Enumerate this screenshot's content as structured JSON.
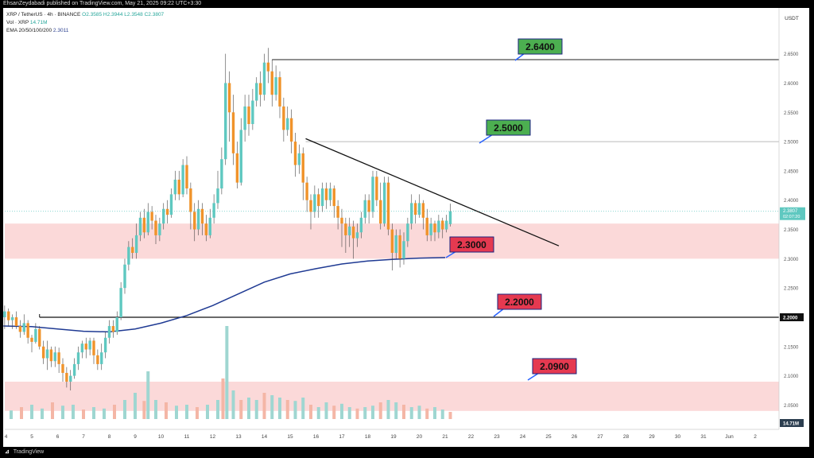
{
  "header": {
    "publisher": "EhsanZeydabadi published on TradingView.com, May 21, 2025 09:22 UTC+3:30"
  },
  "legend": {
    "symbol": "XRP / TetherUS · 4h · BINANCE",
    "o": "O2.3585",
    "h": "H2.3944",
    "l": "L2.3548",
    "c": "C2.3807",
    "vol_label": "Vol · XRP",
    "vol_value": "14.71M",
    "ema_label": "EMA 20/50/100/200",
    "ema_value": "2.3011"
  },
  "footer": {
    "brand": "TradingView"
  },
  "colors": {
    "up": "#5fc8c0",
    "down": "#f0932b",
    "ema": "#1f3a93",
    "zone": "#fbd9d9",
    "green_label": "#4caf50",
    "red_label": "#e53950",
    "vol_up": "#9fd6d1",
    "vol_down": "#f4b6a6"
  },
  "chart_data": {
    "type": "candlestick",
    "currency_label": "USDT",
    "ylim": [
      2.0,
      2.7
    ],
    "y_ticks": [
      "2.6500",
      "2.6000",
      "2.5500",
      "2.5000",
      "2.4500",
      "2.4000",
      "2.3500",
      "2.3000",
      "2.2500",
      "2.2000",
      "2.1500",
      "2.1000",
      "2.0500"
    ],
    "x_ticks": [
      "4",
      "5",
      "6",
      "7",
      "8",
      "9",
      "10",
      "11",
      "12",
      "13",
      "14",
      "15",
      "16",
      "17",
      "18",
      "19",
      "20",
      "21",
      "22",
      "23",
      "24",
      "25",
      "26",
      "27",
      "28",
      "29",
      "30",
      "31",
      "Jun",
      "2"
    ],
    "last_price_label": "2.3807",
    "countdown_label": "02:07:20",
    "level_2200_label": "2.2000",
    "volume_label": "14.71M",
    "zones": [
      {
        "from": 2.3,
        "to": 2.36
      },
      {
        "from": 2.04,
        "to": 2.09
      }
    ],
    "levels": [
      {
        "price": 2.64,
        "label": "2.6400",
        "kind": "resistance"
      },
      {
        "price": 2.5,
        "label": "2.5000",
        "kind": "resistance"
      },
      {
        "price": 2.3,
        "label": "2.3000",
        "kind": "support"
      },
      {
        "price": 2.2,
        "label": "2.2000",
        "kind": "support"
      },
      {
        "price": 2.09,
        "label": "2.0900",
        "kind": "support"
      }
    ],
    "trendline": {
      "from": {
        "day": 15.6,
        "price": 2.505
      },
      "to": {
        "day": 25.4,
        "price": 2.322
      }
    },
    "ema200": [
      [
        3.9,
        2.185
      ],
      [
        5,
        2.184
      ],
      [
        6,
        2.18
      ],
      [
        7,
        2.176
      ],
      [
        8,
        2.175
      ],
      [
        9,
        2.18
      ],
      [
        10,
        2.19
      ],
      [
        11,
        2.203
      ],
      [
        12,
        2.22
      ],
      [
        13,
        2.24
      ],
      [
        14,
        2.26
      ],
      [
        15,
        2.274
      ],
      [
        16,
        2.283
      ],
      [
        17,
        2.291
      ],
      [
        18,
        2.296
      ],
      [
        19,
        2.299
      ],
      [
        20,
        2.301
      ],
      [
        21,
        2.302
      ]
    ],
    "candles": [
      [
        3.95,
        2.2,
        2.21,
        2.22,
        2.18
      ],
      [
        4.1,
        2.21,
        2.195,
        2.215,
        2.185
      ],
      [
        4.25,
        2.195,
        2.2,
        2.205,
        2.18
      ],
      [
        4.4,
        2.2,
        2.185,
        2.21,
        2.18
      ],
      [
        4.55,
        2.185,
        2.175,
        2.195,
        2.165
      ],
      [
        4.7,
        2.175,
        2.19,
        2.205,
        2.17
      ],
      [
        4.85,
        2.19,
        2.165,
        2.195,
        2.155
      ],
      [
        5.0,
        2.165,
        2.158,
        2.17,
        2.14
      ],
      [
        5.15,
        2.158,
        2.18,
        2.19,
        2.155
      ],
      [
        5.3,
        2.18,
        2.15,
        2.185,
        2.145
      ],
      [
        5.45,
        2.15,
        2.13,
        2.16,
        2.12
      ],
      [
        5.6,
        2.13,
        2.145,
        2.16,
        2.11
      ],
      [
        5.75,
        2.145,
        2.125,
        2.15,
        2.115
      ],
      [
        5.9,
        2.125,
        2.14,
        2.15,
        2.115
      ],
      [
        6.05,
        2.14,
        2.12,
        2.148,
        2.105
      ],
      [
        6.2,
        2.12,
        2.105,
        2.13,
        2.09
      ],
      [
        6.35,
        2.105,
        2.09,
        2.115,
        2.08
      ],
      [
        6.5,
        2.09,
        2.1,
        2.11,
        2.075
      ],
      [
        6.65,
        2.1,
        2.12,
        2.13,
        2.095
      ],
      [
        6.8,
        2.12,
        2.14,
        2.15,
        2.11
      ],
      [
        6.95,
        2.14,
        2.155,
        2.16,
        2.13
      ],
      [
        7.1,
        2.155,
        2.145,
        2.165,
        2.13
      ],
      [
        7.25,
        2.145,
        2.16,
        2.165,
        2.135
      ],
      [
        7.4,
        2.16,
        2.135,
        2.165,
        2.12
      ],
      [
        7.55,
        2.135,
        2.12,
        2.145,
        2.11
      ],
      [
        7.7,
        2.12,
        2.14,
        2.155,
        2.11
      ],
      [
        7.85,
        2.14,
        2.165,
        2.175,
        2.13
      ],
      [
        8.0,
        2.165,
        2.185,
        2.195,
        2.155
      ],
      [
        8.15,
        2.185,
        2.175,
        2.195,
        2.165
      ],
      [
        8.3,
        2.175,
        2.2,
        2.21,
        2.17
      ],
      [
        8.45,
        2.2,
        2.25,
        2.26,
        2.195
      ],
      [
        8.6,
        2.25,
        2.29,
        2.3,
        2.24
      ],
      [
        8.75,
        2.29,
        2.32,
        2.33,
        2.28
      ],
      [
        8.9,
        2.32,
        2.31,
        2.335,
        2.3
      ],
      [
        9.05,
        2.31,
        2.34,
        2.36,
        2.3
      ],
      [
        9.2,
        2.34,
        2.37,
        2.38,
        2.33
      ],
      [
        9.35,
        2.37,
        2.345,
        2.385,
        2.335
      ],
      [
        9.5,
        2.345,
        2.38,
        2.395,
        2.34
      ],
      [
        9.65,
        2.38,
        2.365,
        2.39,
        2.35
      ],
      [
        9.8,
        2.365,
        2.34,
        2.375,
        2.325
      ],
      [
        9.95,
        2.34,
        2.36,
        2.37,
        2.33
      ],
      [
        10.1,
        2.36,
        2.385,
        2.395,
        2.35
      ],
      [
        10.25,
        2.385,
        2.375,
        2.4,
        2.36
      ],
      [
        10.4,
        2.375,
        2.41,
        2.42,
        2.37
      ],
      [
        10.55,
        2.41,
        2.435,
        2.45,
        2.4
      ],
      [
        10.7,
        2.435,
        2.41,
        2.45,
        2.4
      ],
      [
        10.85,
        2.41,
        2.46,
        2.47,
        2.405
      ],
      [
        11.0,
        2.46,
        2.42,
        2.475,
        2.41
      ],
      [
        11.15,
        2.42,
        2.38,
        2.43,
        2.35
      ],
      [
        11.3,
        2.38,
        2.35,
        2.395,
        2.33
      ],
      [
        11.45,
        2.35,
        2.385,
        2.4,
        2.34
      ],
      [
        11.6,
        2.385,
        2.36,
        2.395,
        2.34
      ],
      [
        11.75,
        2.36,
        2.34,
        2.375,
        2.33
      ],
      [
        11.9,
        2.34,
        2.37,
        2.385,
        2.335
      ],
      [
        12.05,
        2.37,
        2.395,
        2.41,
        2.36
      ],
      [
        12.2,
        2.395,
        2.42,
        2.45,
        2.385
      ],
      [
        12.35,
        2.42,
        2.47,
        2.49,
        2.41
      ],
      [
        12.5,
        2.47,
        2.6,
        2.65,
        2.46
      ],
      [
        12.65,
        2.6,
        2.55,
        2.62,
        2.5
      ],
      [
        12.8,
        2.55,
        2.48,
        2.58,
        2.46
      ],
      [
        12.95,
        2.48,
        2.43,
        2.5,
        2.42
      ],
      [
        13.1,
        2.43,
        2.52,
        2.54,
        2.425
      ],
      [
        13.25,
        2.52,
        2.56,
        2.58,
        2.5
      ],
      [
        13.4,
        2.56,
        2.53,
        2.58,
        2.51
      ],
      [
        13.55,
        2.53,
        2.57,
        2.59,
        2.52
      ],
      [
        13.7,
        2.57,
        2.6,
        2.61,
        2.56
      ],
      [
        13.85,
        2.6,
        2.58,
        2.62,
        2.56
      ],
      [
        14.0,
        2.58,
        2.635,
        2.65,
        2.57
      ],
      [
        14.15,
        2.635,
        2.62,
        2.66,
        2.6
      ],
      [
        14.3,
        2.62,
        2.58,
        2.64,
        2.56
      ],
      [
        14.45,
        2.58,
        2.61,
        2.63,
        2.57
      ],
      [
        14.6,
        2.61,
        2.56,
        2.62,
        2.54
      ],
      [
        14.75,
        2.56,
        2.52,
        2.575,
        2.5
      ],
      [
        14.9,
        2.52,
        2.54,
        2.56,
        2.51
      ],
      [
        15.05,
        2.54,
        2.5,
        2.555,
        2.48
      ],
      [
        15.2,
        2.5,
        2.46,
        2.515,
        2.44
      ],
      [
        15.35,
        2.46,
        2.48,
        2.495,
        2.445
      ],
      [
        15.5,
        2.48,
        2.43,
        2.49,
        2.4
      ],
      [
        15.65,
        2.43,
        2.4,
        2.44,
        2.38
      ],
      [
        15.8,
        2.4,
        2.38,
        2.41,
        2.35
      ],
      [
        15.95,
        2.38,
        2.41,
        2.425,
        2.37
      ],
      [
        16.1,
        2.41,
        2.39,
        2.42,
        2.37
      ],
      [
        16.25,
        2.39,
        2.42,
        2.43,
        2.38
      ],
      [
        16.4,
        2.42,
        2.4,
        2.43,
        2.385
      ],
      [
        16.55,
        2.4,
        2.42,
        2.43,
        2.39
      ],
      [
        16.7,
        2.42,
        2.39,
        2.425,
        2.37
      ],
      [
        16.85,
        2.39,
        2.37,
        2.4,
        2.35
      ],
      [
        17.0,
        2.37,
        2.36,
        2.385,
        2.32
      ],
      [
        17.15,
        2.36,
        2.34,
        2.37,
        2.31
      ],
      [
        17.3,
        2.34,
        2.355,
        2.37,
        2.32
      ],
      [
        17.45,
        2.355,
        2.335,
        2.365,
        2.3
      ],
      [
        17.6,
        2.335,
        2.345,
        2.36,
        2.32
      ],
      [
        17.75,
        2.345,
        2.37,
        2.38,
        2.335
      ],
      [
        17.9,
        2.37,
        2.4,
        2.41,
        2.36
      ],
      [
        18.05,
        2.4,
        2.38,
        2.41,
        2.36
      ],
      [
        18.2,
        2.38,
        2.44,
        2.45,
        2.37
      ],
      [
        18.35,
        2.44,
        2.4,
        2.45,
        2.39
      ],
      [
        18.5,
        2.4,
        2.36,
        2.43,
        2.35
      ],
      [
        18.65,
        2.36,
        2.43,
        2.44,
        2.355
      ],
      [
        18.8,
        2.43,
        2.35,
        2.44,
        2.34
      ],
      [
        18.95,
        2.35,
        2.31,
        2.36,
        2.28
      ],
      [
        19.1,
        2.31,
        2.34,
        2.35,
        2.3
      ],
      [
        19.25,
        2.34,
        2.3,
        2.35,
        2.285
      ],
      [
        19.4,
        2.3,
        2.33,
        2.345,
        2.29
      ],
      [
        19.55,
        2.33,
        2.36,
        2.37,
        2.32
      ],
      [
        19.7,
        2.36,
        2.395,
        2.41,
        2.35
      ],
      [
        19.85,
        2.395,
        2.375,
        2.4,
        2.36
      ],
      [
        20.0,
        2.375,
        2.395,
        2.41,
        2.37
      ],
      [
        20.15,
        2.395,
        2.37,
        2.4,
        2.35
      ],
      [
        20.3,
        2.37,
        2.34,
        2.385,
        2.33
      ],
      [
        20.45,
        2.34,
        2.36,
        2.37,
        2.33
      ],
      [
        20.6,
        2.36,
        2.345,
        2.365,
        2.33
      ],
      [
        20.75,
        2.345,
        2.365,
        2.375,
        2.335
      ],
      [
        20.9,
        2.365,
        2.35,
        2.37,
        2.335
      ],
      [
        21.05,
        2.35,
        2.365,
        2.375,
        2.345
      ],
      [
        21.2,
        2.359,
        2.381,
        2.394,
        2.355
      ]
    ],
    "volume": [
      [
        4.2,
        0.18
      ],
      [
        4.6,
        0.25
      ],
      [
        5.0,
        0.3
      ],
      [
        5.4,
        0.22
      ],
      [
        5.8,
        0.35
      ],
      [
        6.2,
        0.28
      ],
      [
        6.6,
        0.3
      ],
      [
        7.0,
        0.2
      ],
      [
        7.4,
        0.25
      ],
      [
        7.8,
        0.22
      ],
      [
        8.2,
        0.3
      ],
      [
        8.6,
        0.4
      ],
      [
        9.0,
        0.55
      ],
      [
        9.35,
        0.38
      ],
      [
        9.5,
        1.0
      ],
      [
        9.8,
        0.4
      ],
      [
        10.2,
        0.35
      ],
      [
        10.6,
        0.28
      ],
      [
        11.0,
        0.3
      ],
      [
        11.4,
        0.25
      ],
      [
        11.8,
        0.3
      ],
      [
        12.2,
        0.4
      ],
      [
        12.4,
        0.85
      ],
      [
        12.55,
        1.95
      ],
      [
        12.8,
        0.6
      ],
      [
        13.1,
        0.4
      ],
      [
        13.4,
        0.45
      ],
      [
        13.7,
        0.4
      ],
      [
        14.0,
        0.55
      ],
      [
        14.3,
        0.5
      ],
      [
        14.6,
        0.45
      ],
      [
        14.9,
        0.4
      ],
      [
        15.2,
        0.38
      ],
      [
        15.5,
        0.45
      ],
      [
        15.8,
        0.3
      ],
      [
        16.1,
        0.25
      ],
      [
        16.4,
        0.35
      ],
      [
        16.7,
        0.28
      ],
      [
        17.0,
        0.32
      ],
      [
        17.3,
        0.25
      ],
      [
        17.6,
        0.22
      ],
      [
        17.9,
        0.25
      ],
      [
        18.2,
        0.28
      ],
      [
        18.5,
        0.35
      ],
      [
        18.8,
        0.4
      ],
      [
        19.1,
        0.35
      ],
      [
        19.4,
        0.3
      ],
      [
        19.7,
        0.25
      ],
      [
        20.0,
        0.28
      ],
      [
        20.3,
        0.22
      ],
      [
        20.6,
        0.25
      ],
      [
        20.9,
        0.2
      ],
      [
        21.2,
        0.15
      ]
    ]
  }
}
